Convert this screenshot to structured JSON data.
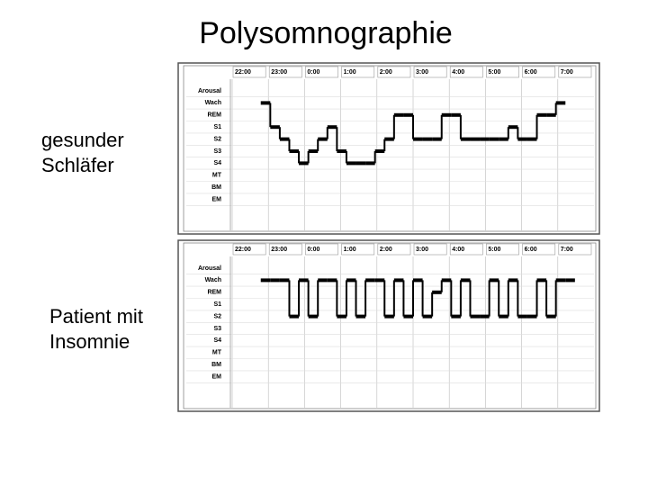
{
  "title": "Polysomnographie",
  "panels": [
    {
      "label": "gesunder\nSchläfer",
      "times": [
        "22:00",
        "23:00",
        "0:00",
        "1:00",
        "2:00",
        "3:00",
        "4:00",
        "5:00",
        "6:00",
        "7:00"
      ],
      "rows": [
        "Arousal",
        "Wach",
        "REM",
        "S1",
        "S2",
        "S3",
        "S4",
        "MT",
        "BM",
        "EM"
      ],
      "hypnogram": [
        null,
        null,
        null,
        "Wach",
        "S1",
        "S2",
        "S3",
        "S4",
        "S3",
        "S2",
        "S1",
        "S3",
        "S4",
        "S4",
        "S4",
        "S3",
        "S2",
        "REM",
        "REM",
        "S2",
        "S2",
        "S2",
        "REM",
        "REM",
        "S2",
        "S2",
        "S2",
        "S2",
        "S2",
        "S1",
        "S2",
        "S2",
        "REM",
        "REM",
        "Wach",
        null,
        null,
        null
      ]
    },
    {
      "label": "Patient mit\nInsomnie",
      "times": [
        "22:00",
        "23:00",
        "0:00",
        "1:00",
        "2:00",
        "3:00",
        "4:00",
        "5:00",
        "6:00",
        "7:00"
      ],
      "rows": [
        "Arousal",
        "Wach",
        "REM",
        "S1",
        "S2",
        "S3",
        "S4",
        "MT",
        "BM",
        "EM"
      ],
      "hypnogram": [
        null,
        null,
        null,
        "Wach",
        "Wach",
        "Wach",
        "S2",
        "Wach",
        "S2",
        "Wach",
        "Wach",
        "S2",
        "Wach",
        "S2",
        "Wach",
        "Wach",
        "S2",
        "Wach",
        "S2",
        "Wach",
        "S2",
        "REM",
        "Wach",
        "S2",
        "Wach",
        "S2",
        "S2",
        "Wach",
        "S2",
        "Wach",
        "S2",
        "S2",
        "Wach",
        "S2",
        "Wach",
        "Wach",
        null,
        null
      ]
    }
  ]
}
